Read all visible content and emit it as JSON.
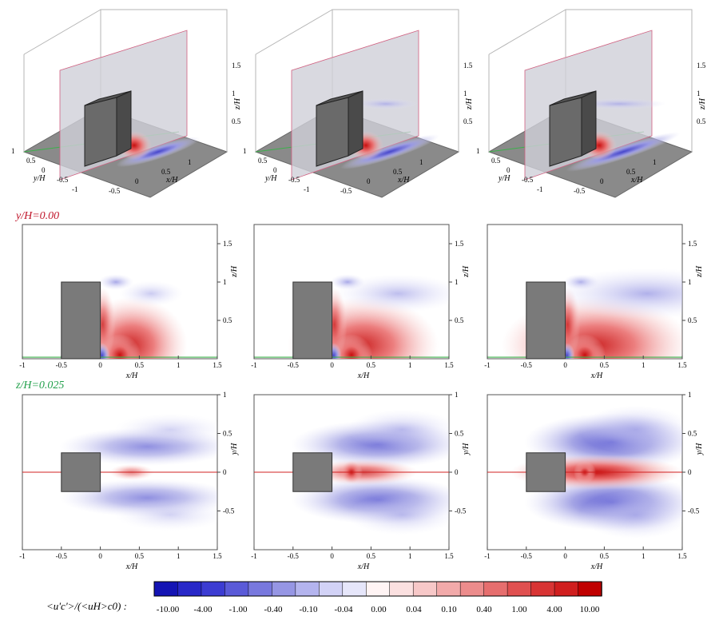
{
  "section_labels": {
    "vertical_plane": "y/H=0.00",
    "horizontal_plane": "z/H=0.025"
  },
  "colorbar": {
    "label": "<u'c'>/(<uH>c0) :",
    "tick_labels": [
      "-10.00",
      "-4.00",
      "-1.00",
      "-0.40",
      "-0.10",
      "-0.04",
      "0.00",
      "0.04",
      "0.10",
      "0.40",
      "1.00",
      "4.00",
      "10.00"
    ],
    "colors": [
      "#1414b4",
      "#2828c8",
      "#3c3cd2",
      "#5a5ad8",
      "#7878de",
      "#9696e4",
      "#b4b4ee",
      "#d2d2f6",
      "#e6e6fa",
      "#fff4f4",
      "#fbe0e0",
      "#f7c8c8",
      "#f2aaaa",
      "#ec8c8c",
      "#e66e6e",
      "#e05050",
      "#d83434",
      "#d01e1e",
      "#c00000"
    ]
  },
  "chart_data": [
    {
      "type": "heatmap",
      "panel": "3d-oblique",
      "columns": 3,
      "xlabel": "x/H",
      "ylabel": "y/H",
      "zlabel": "z/H",
      "x_ticks": [
        "-0.5",
        "0",
        "0.5",
        "1"
      ],
      "y_ticks": [
        "1",
        "0.5",
        "0",
        "-0.5",
        "-1"
      ],
      "z_ticks": [
        "0.5",
        "1",
        "1.5"
      ]
    },
    {
      "type": "heatmap",
      "panel": "vertical-plane",
      "columns": 3,
      "plane": "y/H=0.00",
      "xlabel": "x/H",
      "ylabel": "z/H",
      "xlim": [
        -1,
        1.5
      ],
      "ylim": [
        0,
        1.75
      ],
      "x_ticks": [
        "-1",
        "-0.5",
        "0",
        "0.5",
        "1",
        "1.5"
      ],
      "y_ticks": [
        "0.5",
        "1",
        "1.5"
      ],
      "obstacle": {
        "x": [
          -0.5,
          0
        ],
        "z": [
          0,
          1
        ]
      }
    },
    {
      "type": "heatmap",
      "panel": "horizontal-plane",
      "columns": 3,
      "plane": "z/H=0.025",
      "xlabel": "x/H",
      "ylabel": "y/H",
      "xlim": [
        -1,
        1.5
      ],
      "ylim": [
        -1,
        1
      ],
      "x_ticks": [
        "-1",
        "-0.5",
        "0",
        "0.5",
        "1",
        "1.5"
      ],
      "y_ticks": [
        "-0.5",
        "0",
        "0.5",
        "1"
      ],
      "obstacle": {
        "x": [
          -0.5,
          0
        ],
        "y": [
          -0.25,
          0.25
        ]
      }
    }
  ]
}
